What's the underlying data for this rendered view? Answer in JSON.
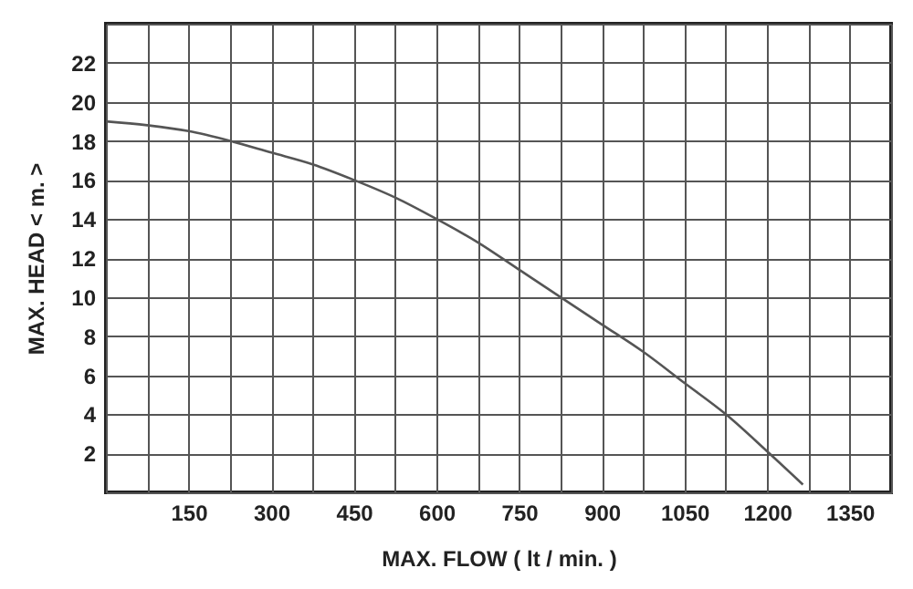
{
  "chart_data": {
    "type": "line",
    "xlabel": "MAX.   FLOW   ( lt / min. )",
    "ylabel": "MAX.   HEAD   < m. >",
    "x": [
      0,
      75,
      150,
      225,
      300,
      375,
      450,
      525,
      600,
      675,
      750,
      825,
      900,
      975,
      1050,
      1125,
      1200,
      1265
    ],
    "series": [
      {
        "color": "#555555",
        "values": [
          19.0,
          18.8,
          18.5,
          18.0,
          17.4,
          16.8,
          16.0,
          15.1,
          14.0,
          12.8,
          11.4,
          10.0,
          8.6,
          7.2,
          5.6,
          4.0,
          2.1,
          0.4
        ]
      }
    ],
    "xlim": [
      0,
      1425
    ],
    "xticks": [
      {
        "value": 0,
        "label": null
      },
      {
        "value": 75,
        "label": null
      },
      150,
      {
        "value": 225,
        "label": null
      },
      300,
      {
        "value": 375,
        "label": null
      },
      450,
      {
        "value": 525,
        "label": null
      },
      600,
      {
        "value": 675,
        "label": null
      },
      750,
      {
        "value": 825,
        "label": null
      },
      900,
      {
        "value": 975,
        "label": null
      },
      1050,
      {
        "value": 1125,
        "label": null
      },
      1200,
      {
        "value": 1275,
        "label": null
      },
      1350,
      {
        "value": 1425,
        "label": null
      }
    ],
    "ylim": [
      0,
      24
    ],
    "yticks": [
      {
        "value": 0,
        "label": null
      },
      2,
      4,
      6,
      8,
      10,
      12,
      14,
      16,
      18,
      20,
      22,
      {
        "value": 24,
        "label": null
      }
    ],
    "grid": true,
    "marker": "none",
    "line_style": "solid"
  }
}
